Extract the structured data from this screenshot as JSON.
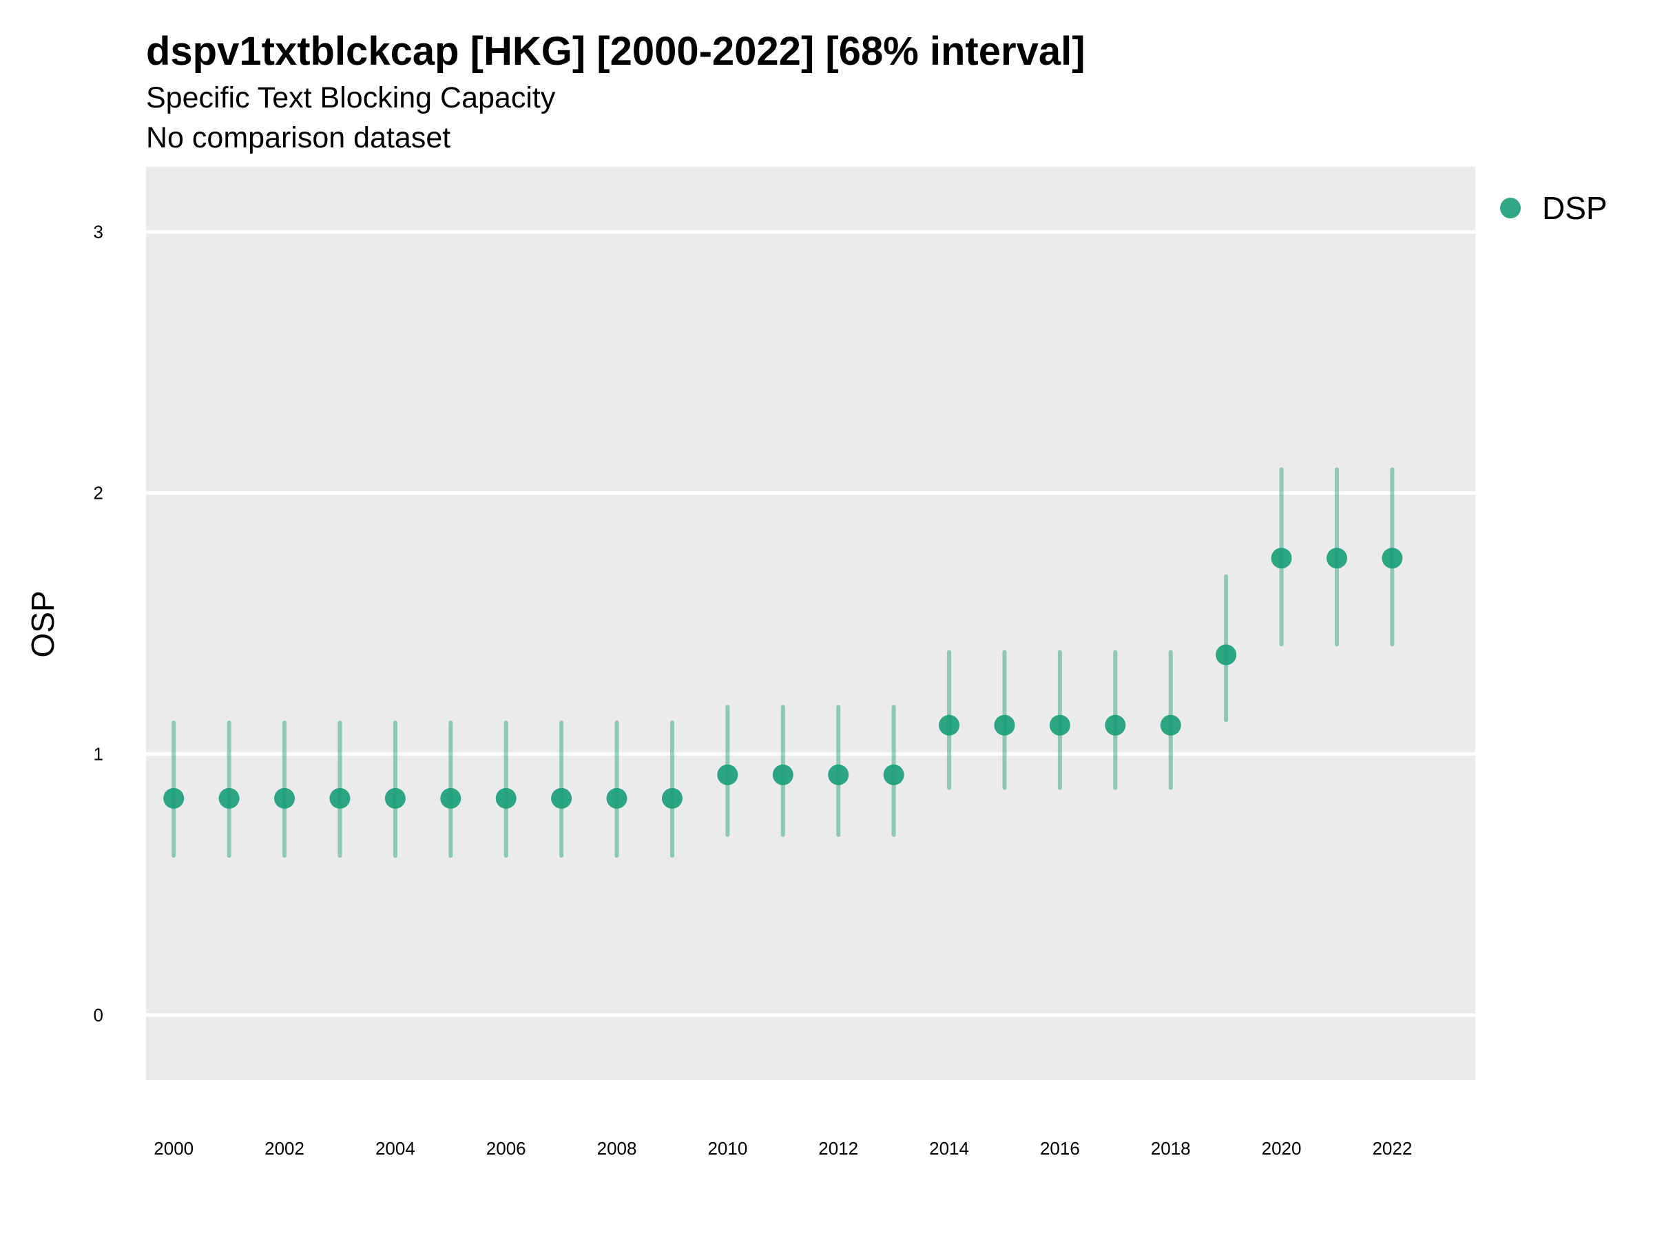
{
  "chart_data": {
    "type": "scatter",
    "title": "dspv1txtblckcap [HKG] [2000-2022] [68% interval]",
    "subtitle": "Specific Text Blocking Capacity",
    "caption_line": "No comparison dataset",
    "xlabel": "",
    "ylabel": "OSP",
    "ylim": [
      -0.25,
      3.25
    ],
    "xlim": [
      1999.5,
      2023.5
    ],
    "yticks": [
      0,
      1,
      2,
      3
    ],
    "ytick_labels": [
      "0",
      "1",
      "2",
      "3"
    ],
    "xticks": [
      2000,
      2002,
      2004,
      2006,
      2008,
      2010,
      2012,
      2014,
      2016,
      2018,
      2020,
      2022
    ],
    "xtick_labels": [
      "2000",
      "2002",
      "2004",
      "2006",
      "2008",
      "2010",
      "2012",
      "2014",
      "2016",
      "2018",
      "2020",
      "2022"
    ],
    "grid": true,
    "legend_position": "top-right",
    "series": [
      {
        "name": "DSP",
        "color": "#1b9e77",
        "x": [
          2000,
          2001,
          2002,
          2003,
          2004,
          2005,
          2006,
          2007,
          2008,
          2009,
          2010,
          2011,
          2012,
          2013,
          2014,
          2015,
          2016,
          2017,
          2018,
          2019,
          2020,
          2021,
          2022
        ],
        "y": [
          0.83,
          0.83,
          0.83,
          0.83,
          0.83,
          0.83,
          0.83,
          0.83,
          0.83,
          0.83,
          0.92,
          0.92,
          0.92,
          0.92,
          1.11,
          1.11,
          1.11,
          1.11,
          1.11,
          1.38,
          1.75,
          1.75,
          1.75
        ],
        "lower": [
          0.61,
          0.61,
          0.61,
          0.61,
          0.61,
          0.61,
          0.61,
          0.61,
          0.61,
          0.61,
          0.69,
          0.69,
          0.69,
          0.69,
          0.87,
          0.87,
          0.87,
          0.87,
          0.87,
          1.13,
          1.42,
          1.42,
          1.42
        ],
        "upper": [
          1.12,
          1.12,
          1.12,
          1.12,
          1.12,
          1.12,
          1.12,
          1.12,
          1.12,
          1.12,
          1.18,
          1.18,
          1.18,
          1.18,
          1.39,
          1.39,
          1.39,
          1.39,
          1.39,
          1.68,
          2.09,
          2.09,
          2.09
        ]
      }
    ]
  },
  "colors": {
    "panel_background": "#ebebeb",
    "gridline": "#ffffff",
    "series": "#1b9e77"
  }
}
